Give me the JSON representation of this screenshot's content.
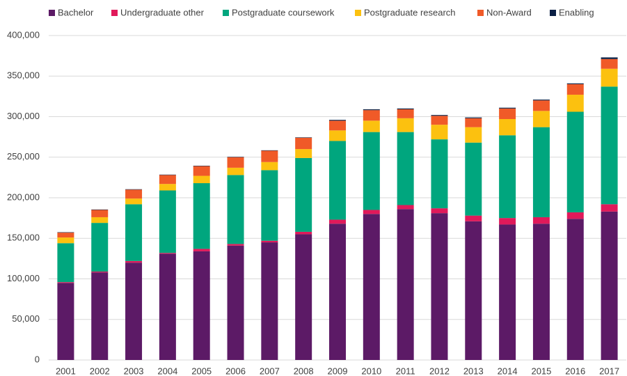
{
  "chart_data": {
    "type": "stacked_bar",
    "categories": [
      "2001",
      "2002",
      "2003",
      "2004",
      "2005",
      "2006",
      "2007",
      "2008",
      "2009",
      "2010",
      "2011",
      "2012",
      "2013",
      "2014",
      "2015",
      "2016",
      "2017"
    ],
    "series": [
      {
        "name": "Bachelor",
        "color": "#5c1a66",
        "values": [
          95000,
          108000,
          120000,
          131000,
          134000,
          141000,
          145000,
          155000,
          168000,
          180000,
          186000,
          181000,
          171000,
          167000,
          168000,
          174000,
          183000
        ]
      },
      {
        "name": "Undergraduate other",
        "color": "#e0195a",
        "values": [
          1000,
          1000,
          2000,
          1000,
          3000,
          2000,
          2000,
          3000,
          5000,
          5000,
          5000,
          6000,
          7000,
          8000,
          8000,
          8000,
          9000
        ]
      },
      {
        "name": "Postgraduate coursework",
        "color": "#00a67e",
        "values": [
          48000,
          60000,
          70000,
          77000,
          81000,
          85000,
          87000,
          91000,
          97000,
          96000,
          90000,
          85000,
          90000,
          102000,
          111000,
          124000,
          145000
        ]
      },
      {
        "name": "Postgraduate research",
        "color": "#fcc10f",
        "values": [
          7000,
          7000,
          7000,
          8000,
          9000,
          9000,
          10000,
          11000,
          13000,
          14000,
          17000,
          18000,
          19000,
          20000,
          20000,
          21000,
          22000
        ]
      },
      {
        "name": "Non-Award",
        "color": "#f05a28",
        "values": [
          6000,
          9000,
          11000,
          11000,
          12000,
          13000,
          14000,
          14000,
          12000,
          13000,
          11000,
          11000,
          11000,
          13000,
          13000,
          13000,
          12000
        ]
      },
      {
        "name": "Enabling",
        "color": "#0a1f44",
        "values": [
          500,
          500,
          500,
          500,
          500,
          500,
          500,
          500,
          1000,
          1000,
          1000,
          1000,
          1000,
          1000,
          1000,
          1000,
          2000
        ]
      }
    ],
    "ylim": [
      0,
      400000
    ],
    "yticks": [
      0,
      {
        "value": 50000,
        "label": "50,000"
      },
      {
        "value": 100000,
        "label": "100,000"
      },
      {
        "value": 150000,
        "label": "150,000"
      },
      {
        "value": 200000,
        "label": "200,000"
      },
      {
        "value": 250000,
        "label": "250,000"
      },
      {
        "value": 300000,
        "label": "300,000"
      },
      {
        "value": 350000,
        "label": "350,000"
      },
      {
        "value": 400000,
        "label": "400,000"
      }
    ],
    "grid": true,
    "legend": "top"
  }
}
